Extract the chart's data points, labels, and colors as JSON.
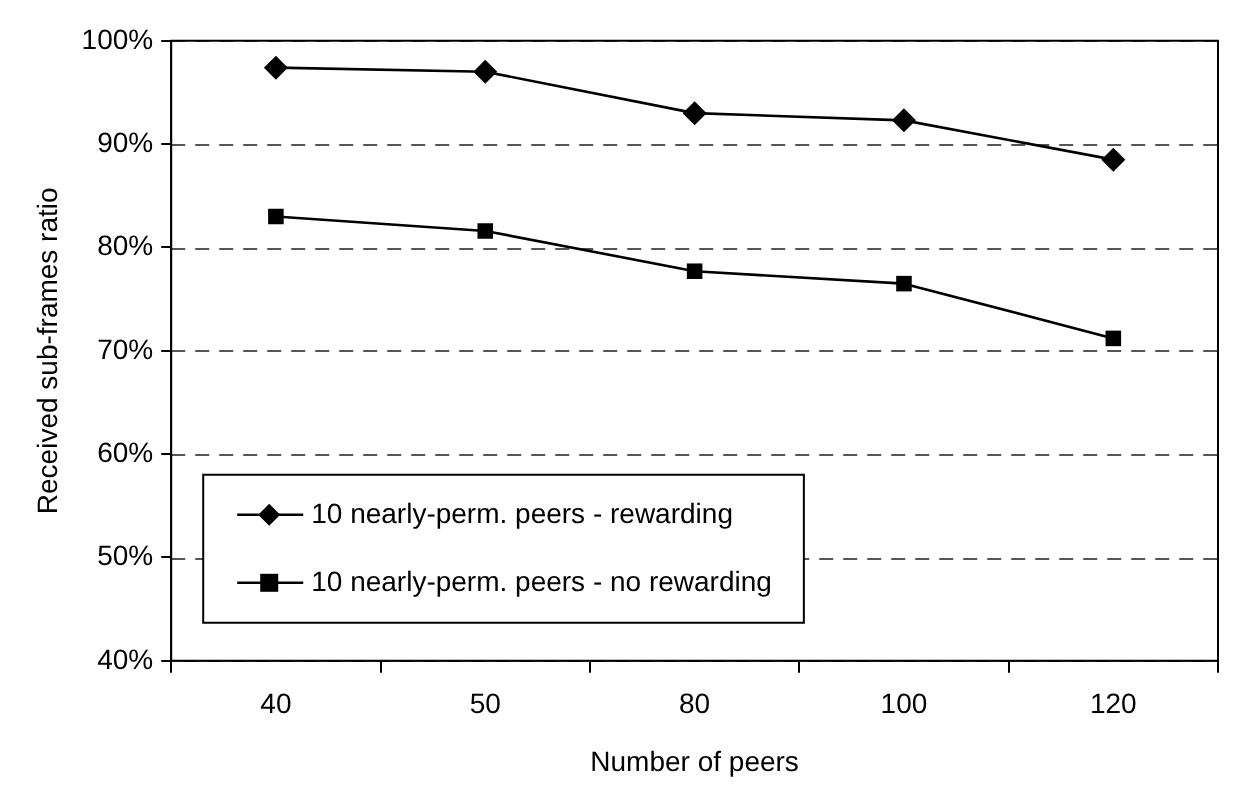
{
  "chart_data": {
    "type": "line",
    "xlabel": "Number of peers",
    "ylabel": "Received sub-frames ratio",
    "categories": [
      "40",
      "50",
      "80",
      "100",
      "120"
    ],
    "series": [
      {
        "name": "10 nearly-perm. peers - rewarding",
        "color": "#000000",
        "marker": "diamond",
        "values": [
          97.4,
          97.0,
          93.0,
          92.3,
          88.5
        ]
      },
      {
        "name": "10 nearly-perm. peers - no rewarding",
        "color": "#000000",
        "marker": "square",
        "values": [
          83.0,
          81.6,
          77.7,
          76.5,
          71.2
        ]
      }
    ],
    "ylim": [
      40,
      100
    ],
    "yticks": [
      {
        "value": 40,
        "label": "40%"
      },
      {
        "value": 50,
        "label": "50%"
      },
      {
        "value": 60,
        "label": "60%"
      },
      {
        "value": 70,
        "label": "70%"
      },
      {
        "value": 80,
        "label": "80%"
      },
      {
        "value": 90,
        "label": "90%"
      },
      {
        "value": 100,
        "label": "100%"
      }
    ],
    "grid": "y",
    "legend": "bottom left",
    "line_style": "solid"
  }
}
